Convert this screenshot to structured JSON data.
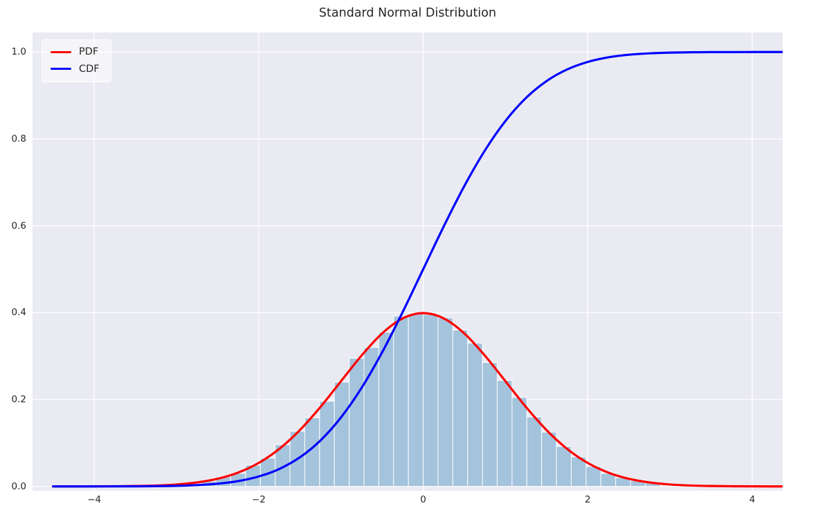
{
  "chart_data": {
    "type": "line+histogram",
    "title": "Standard Normal Distribution",
    "xlabel": "",
    "ylabel": "",
    "xlim": [
      -4.75,
      4.37
    ],
    "ylim": [
      -0.01,
      1.045
    ],
    "grid": true,
    "legend_position": "upper left",
    "plot_background": "#eaeaf2",
    "grid_color": "#ffffff",
    "xticks": [
      -4,
      -2,
      0,
      2,
      4
    ],
    "xtick_labels": [
      "−4",
      "−2",
      "0",
      "2",
      "4"
    ],
    "yticks": [
      0.0,
      0.2,
      0.4,
      0.6,
      0.8,
      1.0
    ],
    "ytick_labels": [
      "0.0",
      "0.2",
      "0.4",
      "0.6",
      "0.8",
      "1.0"
    ],
    "x": [
      -4.5,
      -4.25,
      -4.0,
      -3.75,
      -3.5,
      -3.25,
      -3.0,
      -2.75,
      -2.5,
      -2.25,
      -2.0,
      -1.75,
      -1.5,
      -1.25,
      -1.0,
      -0.75,
      -0.5,
      -0.25,
      0.0,
      0.25,
      0.5,
      0.75,
      1.0,
      1.25,
      1.5,
      1.75,
      2.0,
      2.25,
      2.5,
      2.75,
      3.0,
      3.25,
      3.5,
      3.75,
      4.0,
      4.25,
      4.5
    ],
    "series": [
      {
        "name": "PDF",
        "color": "#ff0000",
        "line_width": 3.2,
        "values": [
          0.0,
          0.0,
          0.0001,
          0.0004,
          0.0009,
          0.002,
          0.0044,
          0.0091,
          0.0175,
          0.0317,
          0.054,
          0.0863,
          0.1295,
          0.1826,
          0.242,
          0.3011,
          0.3521,
          0.3867,
          0.3989,
          0.3867,
          0.3521,
          0.3011,
          0.242,
          0.1826,
          0.1295,
          0.0863,
          0.054,
          0.0317,
          0.0175,
          0.0091,
          0.0044,
          0.002,
          0.0009,
          0.0004,
          0.0001,
          0.0,
          0.0
        ]
      },
      {
        "name": "CDF",
        "color": "#0000ff",
        "line_width": 3.2,
        "values": [
          0.0,
          0.0,
          0.0,
          0.0001,
          0.0002,
          0.0006,
          0.0013,
          0.003,
          0.0062,
          0.0122,
          0.0228,
          0.0401,
          0.0668,
          0.1056,
          0.1587,
          0.2266,
          0.3085,
          0.4013,
          0.5,
          0.5987,
          0.6915,
          0.7734,
          0.8413,
          0.8944,
          0.9332,
          0.9599,
          0.9772,
          0.9878,
          0.9938,
          0.997,
          0.9987,
          0.9994,
          0.9998,
          0.9999,
          1.0,
          1.0,
          1.0
        ]
      }
    ],
    "histogram": {
      "color": "#a4c3dc",
      "edge_color": "#ffffff",
      "bin_width": 0.18,
      "bin_centers": [
        -2.79,
        -2.61,
        -2.43,
        -2.25,
        -2.07,
        -1.89,
        -1.71,
        -1.53,
        -1.35,
        -1.17,
        -0.99,
        -0.81,
        -0.63,
        -0.45,
        -0.27,
        -0.09,
        0.09,
        0.27,
        0.45,
        0.63,
        0.81,
        0.99,
        1.17,
        1.35,
        1.53,
        1.71,
        1.89,
        2.07,
        2.25,
        2.43,
        2.61,
        2.79
      ],
      "densities": [
        0.006,
        0.012,
        0.022,
        0.03,
        0.049,
        0.065,
        0.096,
        0.127,
        0.158,
        0.196,
        0.24,
        0.295,
        0.32,
        0.355,
        0.392,
        0.398,
        0.396,
        0.388,
        0.36,
        0.33,
        0.285,
        0.244,
        0.205,
        0.16,
        0.125,
        0.092,
        0.068,
        0.046,
        0.03,
        0.02,
        0.013,
        0.008
      ]
    }
  }
}
